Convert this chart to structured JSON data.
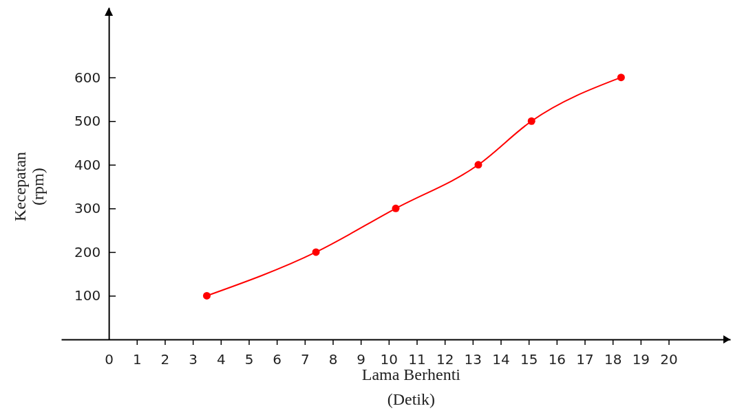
{
  "chart_data": {
    "type": "line",
    "xlabel": "Lama Berhenti\n(Detik)",
    "ylabel": "Kecepatan\n(rpm)",
    "x": [
      3.5,
      7.4,
      10.25,
      13.2,
      15.1,
      18.3
    ],
    "series": [
      {
        "color": "#ff0000",
        "values": [
          100,
          200,
          300,
          400,
          500,
          600
        ]
      }
    ],
    "xlim": [
      -1.7,
      22.2
    ],
    "ylim": [
      0,
      760
    ],
    "xticks": [
      0,
      1,
      2,
      3,
      4,
      5,
      6,
      7,
      8,
      9,
      10,
      11,
      12,
      13,
      14,
      15,
      16,
      17,
      18,
      19,
      20
    ],
    "yticks": [
      100,
      200,
      300,
      400,
      500,
      600
    ],
    "marker": "circle"
  }
}
